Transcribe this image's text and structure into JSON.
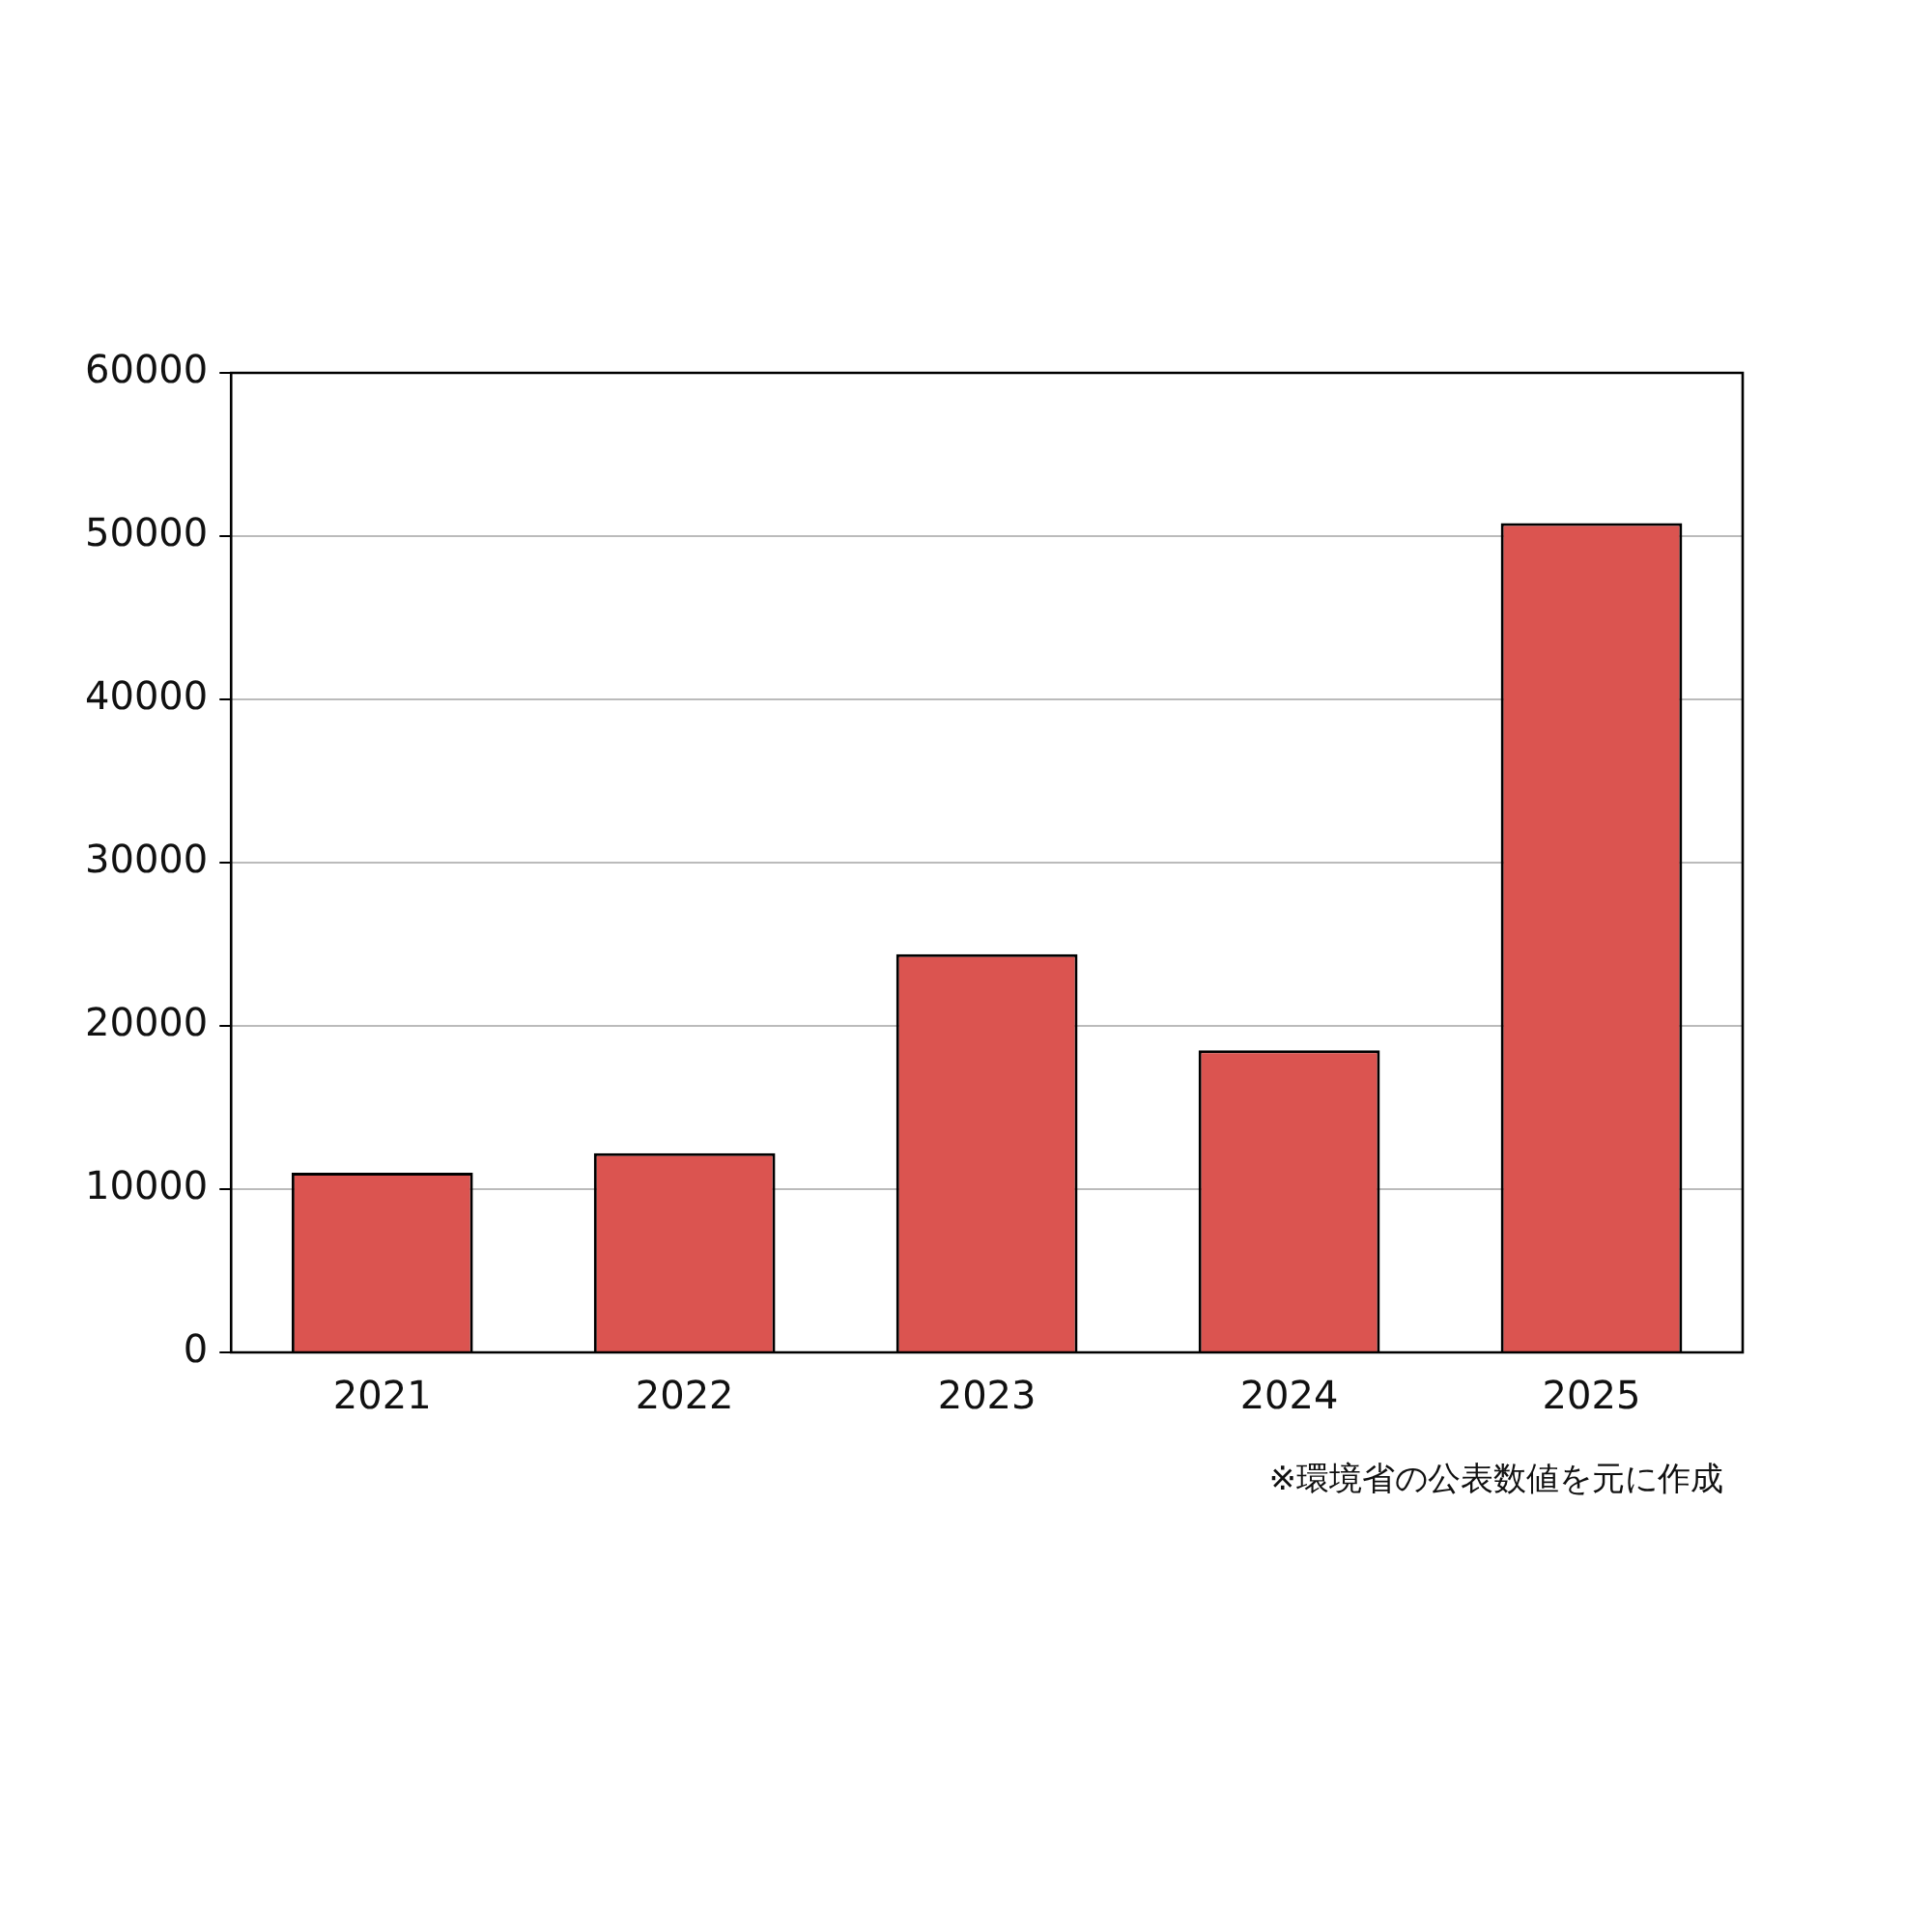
{
  "chart_data": {
    "type": "bar",
    "categories": [
      "2021",
      "2022",
      "2023",
      "2024",
      "2025"
    ],
    "values": [
      11000,
      12200,
      24400,
      18500,
      50800
    ],
    "color": "#db5450",
    "ylim": [
      0,
      60000
    ],
    "yticks": [
      0,
      10000,
      20000,
      30000,
      40000,
      50000,
      60000
    ],
    "grid": "y",
    "annotations": [
      "※環境省の公表数値を元に作成"
    ]
  }
}
